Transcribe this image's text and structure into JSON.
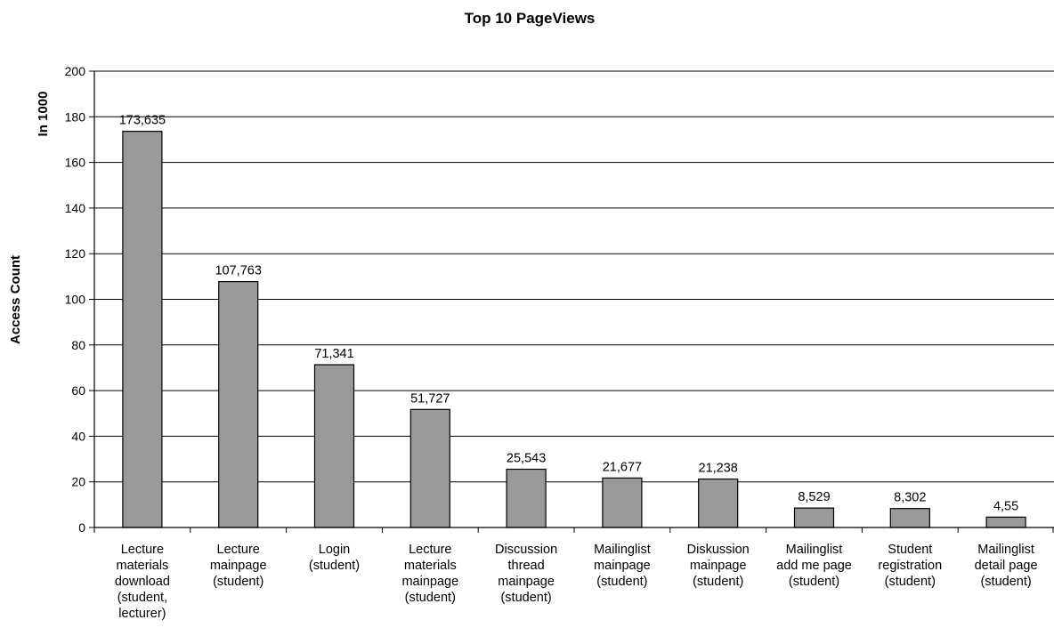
{
  "chart_data": {
    "type": "bar",
    "title": "Top 10 PageViews",
    "ylabel": "Access Count",
    "yunit": "In 1000",
    "ylim": [
      0,
      200
    ],
    "yticks": [
      0,
      20,
      40,
      60,
      80,
      100,
      120,
      140,
      160,
      180,
      200
    ],
    "grid": true,
    "bar_color": "#999999",
    "categories": [
      [
        "Lecture",
        "materials",
        "download",
        "(student,",
        "lecturer)"
      ],
      [
        "Lecture",
        "mainpage",
        "(student)"
      ],
      [
        "Login",
        "(student)"
      ],
      [
        "Lecture",
        "materials",
        "mainpage",
        "(student)"
      ],
      [
        "Discussion",
        "thread",
        "mainpage",
        "(student)"
      ],
      [
        "Mailinglist",
        "mainpage",
        "(student)"
      ],
      [
        "Diskussion",
        "mainpage",
        "(student)"
      ],
      [
        "Mailinglist",
        "add me page",
        "(student)"
      ],
      [
        "Student",
        "registration",
        "(student)"
      ],
      [
        "Mailinglist",
        "detail page",
        "(student)"
      ]
    ],
    "values": [
      173.635,
      107.763,
      71.341,
      51.727,
      25.543,
      21.677,
      21.238,
      8.529,
      8.302,
      4.55
    ],
    "data_labels": [
      "173,635",
      "107,763",
      "71,341",
      "51,727",
      "25,543",
      "21,677",
      "21,238",
      "8,529",
      "8,302",
      "4,55"
    ]
  }
}
